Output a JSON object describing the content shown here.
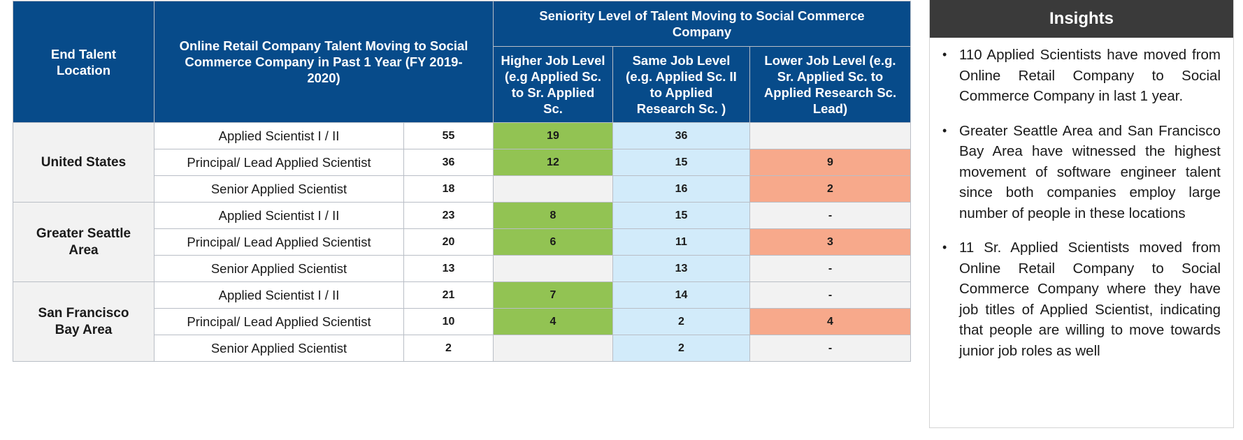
{
  "table": {
    "header": {
      "location": "End Talent Location",
      "moving": "Online Retail Company Talent Moving to Social Commerce Company in Past 1 Year (FY 2019-2020)",
      "seniority": "Seniority Level of Talent Moving to Social Commerce Company",
      "higher": "Higher Job Level (e.g Applied Sc. to Sr. Applied Sc.",
      "same": "Same Job Level (e.g. Applied Sc. II to Applied Research Sc. )",
      "lower": "Lower Job Level (e.g. Sr. Applied Sc. to Applied Research Sc. Lead)"
    },
    "groups": [
      {
        "location": "United States",
        "rows": [
          {
            "title": "Applied Scientist I / II",
            "count": "55",
            "higher": "19",
            "same": "36",
            "lower": ""
          },
          {
            "title": "Principal/ Lead Applied Scientist",
            "count": "36",
            "higher": "12",
            "same": "15",
            "lower": "9"
          },
          {
            "title": "Senior Applied Scientist",
            "count": "18",
            "higher": "",
            "same": "16",
            "lower": "2"
          }
        ]
      },
      {
        "location": "Greater Seattle Area",
        "rows": [
          {
            "title": "Applied Scientist I / II",
            "count": "23",
            "higher": "8",
            "same": "15",
            "lower": "-"
          },
          {
            "title": "Principal/ Lead Applied Scientist",
            "count": "20",
            "higher": "6",
            "same": "11",
            "lower": "3"
          },
          {
            "title": "Senior Applied Scientist",
            "count": "13",
            "higher": "",
            "same": "13",
            "lower": "-"
          }
        ]
      },
      {
        "location": "San Francisco Bay Area",
        "rows": [
          {
            "title": "Applied Scientist I / II",
            "count": "21",
            "higher": "7",
            "same": "14",
            "lower": "-"
          },
          {
            "title": "Principal/ Lead Applied Scientist",
            "count": "10",
            "higher": "4",
            "same": "2",
            "lower": "4"
          },
          {
            "title": "Senior Applied Scientist",
            "count": "2",
            "higher": "",
            "same": "2",
            "lower": "-"
          }
        ]
      }
    ],
    "colors": {
      "header": "#074b8a",
      "higher": "#92c353",
      "same": "#d2ebfa",
      "lower": "#f7a98b",
      "empty": "#f2f2f2"
    }
  },
  "insights": {
    "title": "Insights",
    "bullets": [
      "110 Applied Scientists have moved from Online Retail Company to Social Commerce Company in last 1 year.",
      "Greater Seattle Area and San Francisco Bay Area have witnessed the highest movement of software engineer talent since both companies employ large number of people in these locations",
      "11 Sr. Applied Scientists moved from Online Retail Company to Social Commerce Company where they have job titles of Applied Scientist, indicating that people are willing to move towards junior job roles as well"
    ]
  }
}
